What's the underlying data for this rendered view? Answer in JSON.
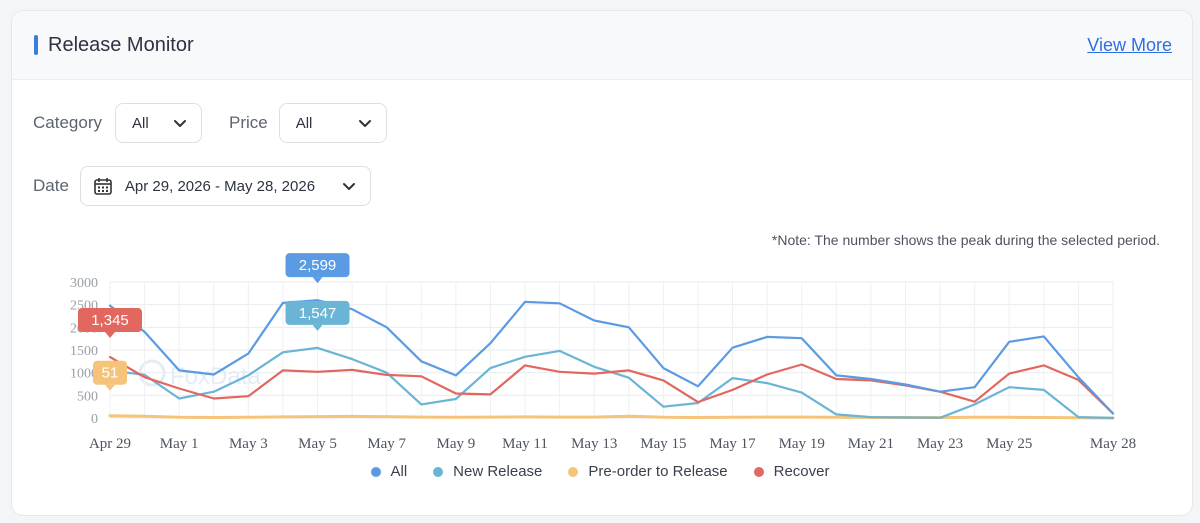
{
  "header": {
    "title": "Release Monitor",
    "view_more": "View More"
  },
  "filters": {
    "category_label": "Category",
    "category_value": "All",
    "price_label": "Price",
    "price_value": "All",
    "date_label": "Date",
    "date_value": "Apr 29, 2026 - May 28, 2026"
  },
  "note": "*Note: The number shows the peak during the selected period.",
  "watermark": "FoxData",
  "colors": {
    "accent": "#3b7ddd",
    "all": "#5b9be3",
    "new_release": "#6ab4d6",
    "preorder": "#f5c47a",
    "recover": "#e2675f"
  },
  "chart_data": {
    "type": "line",
    "x": [
      "Apr 29",
      "Apr 30",
      "May 1",
      "May 2",
      "May 3",
      "May 4",
      "May 5",
      "May 6",
      "May 7",
      "May 8",
      "May 9",
      "May 10",
      "May 11",
      "May 12",
      "May 13",
      "May 14",
      "May 15",
      "May 16",
      "May 17",
      "May 18",
      "May 19",
      "May 20",
      "May 21",
      "May 22",
      "May 23",
      "May 24",
      "May 25",
      "May 26",
      "May 27",
      "May 28"
    ],
    "x_tick_labels": [
      "Apr 29",
      "May 1",
      "May 3",
      "May 5",
      "May 7",
      "May 9",
      "May 11",
      "May 13",
      "May 15",
      "May 17",
      "May 19",
      "May 21",
      "May 23",
      "May 25",
      "May 28"
    ],
    "y_ticks": [
      0,
      500,
      1000,
      1500,
      2000,
      2500,
      3000
    ],
    "y_tick_labels": [
      "0",
      "500",
      "1000",
      "1500",
      "2000",
      "2500",
      "3000"
    ],
    "ylim": [
      0,
      3000
    ],
    "grid": true,
    "legend_position": "bottom",
    "series": [
      {
        "name": "All",
        "color": "#5b9be3",
        "values": [
          2480,
          1900,
          1050,
          960,
          1420,
          2540,
          2599,
          2400,
          2000,
          1250,
          940,
          1650,
          2560,
          2530,
          2150,
          2000,
          1100,
          700,
          1550,
          1790,
          1760,
          940,
          860,
          740,
          580,
          680,
          1680,
          1800,
          900,
          100
        ]
      },
      {
        "name": "New Release",
        "color": "#6ab4d6",
        "values": [
          1050,
          950,
          430,
          580,
          940,
          1450,
          1547,
          1300,
          1000,
          300,
          420,
          1100,
          1350,
          1480,
          1130,
          890,
          250,
          330,
          880,
          770,
          560,
          80,
          20,
          10,
          5,
          300,
          680,
          620,
          20,
          0
        ]
      },
      {
        "name": "Pre-order to Release",
        "color": "#f5c47a",
        "values": [
          51,
          40,
          15,
          10,
          15,
          25,
          30,
          35,
          30,
          20,
          15,
          20,
          25,
          20,
          20,
          40,
          15,
          10,
          15,
          20,
          20,
          15,
          10,
          10,
          10,
          15,
          15,
          10,
          5,
          0
        ]
      },
      {
        "name": "Recover",
        "color": "#e2675f",
        "values": [
          1345,
          900,
          650,
          430,
          480,
          1050,
          1020,
          1060,
          950,
          920,
          540,
          520,
          1160,
          1020,
          980,
          1050,
          830,
          350,
          620,
          960,
          1180,
          860,
          830,
          720,
          580,
          360,
          980,
          1160,
          840,
          100
        ]
      }
    ],
    "annotations": [
      {
        "series": "All",
        "label": "2,599",
        "x": "May 5",
        "value": 2599
      },
      {
        "series": "New Release",
        "label": "1,547",
        "x": "May 5",
        "value": 1547
      },
      {
        "series": "Recover",
        "label": "1,345",
        "x": "Apr 29",
        "value": 1345
      },
      {
        "series": "Pre-order to Release",
        "label": "51",
        "x": "Apr 29",
        "value": 51
      }
    ]
  }
}
